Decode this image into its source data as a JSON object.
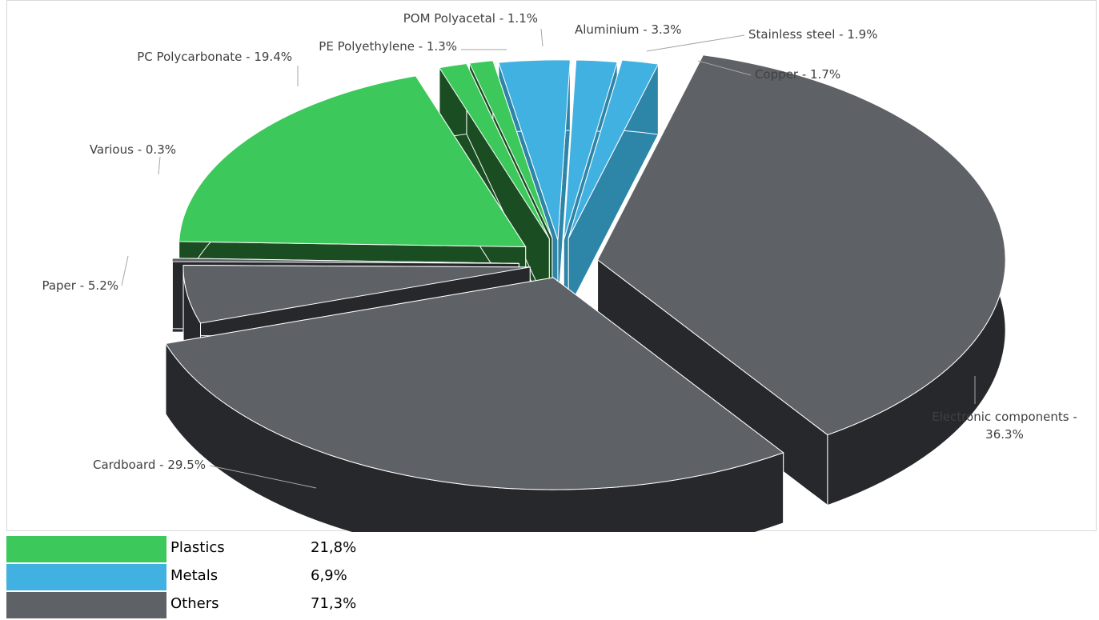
{
  "chart_data": {
    "type": "pie",
    "style": "3d-exploded",
    "title": "",
    "slices": [
      {
        "label": "Electronic components - 36.3%",
        "name": "Electronic components",
        "value": 36.3,
        "group": "Others"
      },
      {
        "label": "Cardboard - 29.5%",
        "name": "Cardboard",
        "value": 29.5,
        "group": "Others"
      },
      {
        "label": "Paper - 5.2%",
        "name": "Paper",
        "value": 5.2,
        "group": "Others"
      },
      {
        "label": "Various - 0.3%",
        "name": "Various",
        "value": 0.3,
        "group": "Others"
      },
      {
        "label": "PC Polycarbonate - 19.4%",
        "name": "PC Polycarbonate",
        "value": 19.4,
        "group": "Plastics"
      },
      {
        "label": "PE Polyethylene - 1.3%",
        "name": "PE Polyethylene",
        "value": 1.3,
        "group": "Plastics"
      },
      {
        "label": "POM Polyacetal - 1.1%",
        "name": "POM Polyacetal",
        "value": 1.1,
        "group": "Plastics"
      },
      {
        "label": "Aluminium - 3.3%",
        "name": "Aluminium",
        "value": 3.3,
        "group": "Metals"
      },
      {
        "label": "Stainless steel - 1.9%",
        "name": "Stainless steel",
        "value": 1.9,
        "group": "Metals"
      },
      {
        "label": "Copper - 1.7%",
        "name": "Copper",
        "value": 1.7,
        "group": "Metals"
      }
    ],
    "legend": [
      {
        "name": "Plastics",
        "value": "21,8%",
        "color": "#3cc85a"
      },
      {
        "name": "Metals",
        "value": "6,9%",
        "color": "#41b1e1"
      },
      {
        "name": "Others",
        "value": "71,3%",
        "color": "#5e6166"
      }
    ],
    "colors": {
      "Plastics": {
        "top": "#3cc85a",
        "side": "#1a4e22"
      },
      "Metals": {
        "top": "#41b1e1",
        "side": "#2d85a8"
      },
      "Others": {
        "top": "#5e6166",
        "side": "#26282b"
      }
    },
    "legend_placement": "bottom-left"
  }
}
